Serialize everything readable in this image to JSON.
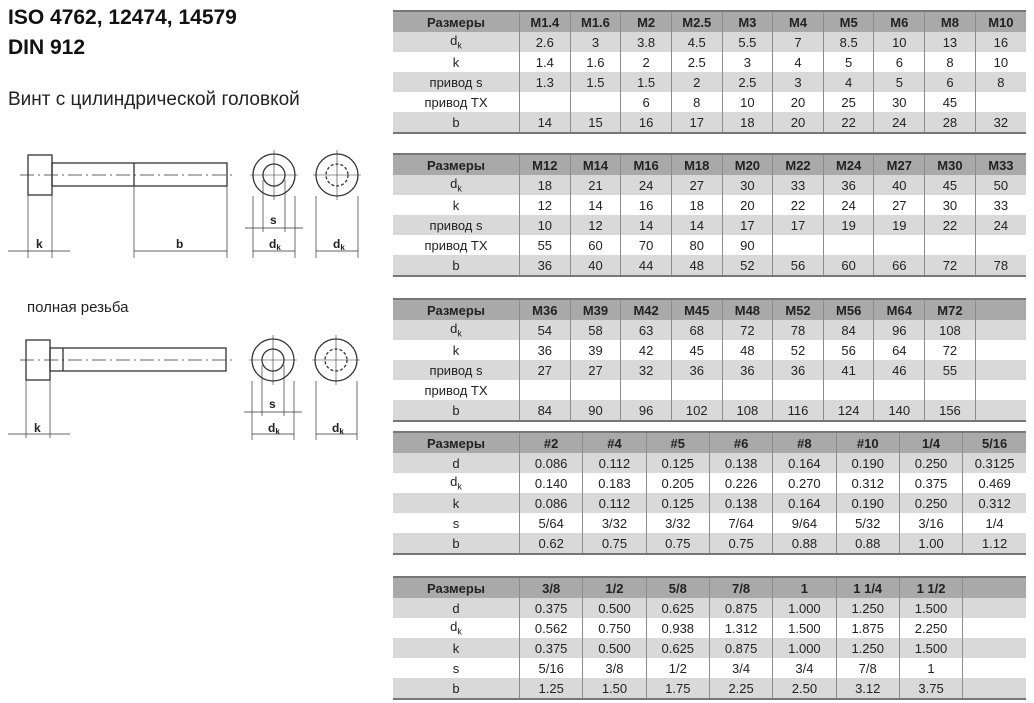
{
  "header": {
    "title_line1": "ISO 4762, 12474, 14579",
    "title_line2": "DIN 912",
    "subtitle": "Винт с цилиндрической головкой"
  },
  "note": "полная резьба",
  "diagram_labels": {
    "k": "k",
    "b": "b",
    "s": "s",
    "dk_main": "d",
    "dk_sub": "k"
  },
  "colors": {
    "header_bg": "#a9a9a9",
    "alt_row_bg": "#d9d9d9"
  },
  "tables": [
    {
      "header": [
        "Размеры",
        "M1.4",
        "M1.6",
        "M2",
        "M2.5",
        "M3",
        "M4",
        "M5",
        "M6",
        "M8",
        "M10"
      ],
      "rows": [
        {
          "label": "d",
          "sub": "k",
          "cells": [
            "2.6",
            "3",
            "3.8",
            "4.5",
            "5.5",
            "7",
            "8.5",
            "10",
            "13",
            "16"
          ]
        },
        {
          "label": "k",
          "cells": [
            "1.4",
            "1.6",
            "2",
            "2.5",
            "3",
            "4",
            "5",
            "6",
            "8",
            "10"
          ]
        },
        {
          "label": "привод s",
          "cells": [
            "1.3",
            "1.5",
            "1.5",
            "2",
            "2.5",
            "3",
            "4",
            "5",
            "6",
            "8"
          ]
        },
        {
          "label": "привод TX",
          "cells": [
            "",
            "",
            "6",
            "8",
            "10",
            "20",
            "25",
            "30",
            "45",
            ""
          ]
        },
        {
          "label": "b",
          "cells": [
            "14",
            "15",
            "16",
            "17",
            "18",
            "20",
            "22",
            "24",
            "28",
            "32"
          ]
        }
      ]
    },
    {
      "header": [
        "Размеры",
        "M12",
        "M14",
        "M16",
        "M18",
        "M20",
        "M22",
        "M24",
        "M27",
        "M30",
        "M33"
      ],
      "rows": [
        {
          "label": "d",
          "sub": "k",
          "cells": [
            "18",
            "21",
            "24",
            "27",
            "30",
            "33",
            "36",
            "40",
            "45",
            "50"
          ]
        },
        {
          "label": "k",
          "cells": [
            "12",
            "14",
            "16",
            "18",
            "20",
            "22",
            "24",
            "27",
            "30",
            "33"
          ]
        },
        {
          "label": "привод s",
          "cells": [
            "10",
            "12",
            "14",
            "14",
            "17",
            "17",
            "19",
            "19",
            "22",
            "24"
          ]
        },
        {
          "label": "привод TX",
          "cells": [
            "55",
            "60",
            "70",
            "80",
            "90",
            "",
            "",
            "",
            "",
            ""
          ]
        },
        {
          "label": "b",
          "cells": [
            "36",
            "40",
            "44",
            "48",
            "52",
            "56",
            "60",
            "66",
            "72",
            "78"
          ]
        }
      ]
    },
    {
      "header": [
        "Размеры",
        "M36",
        "M39",
        "M42",
        "M45",
        "M48",
        "M52",
        "M56",
        "M64",
        "M72",
        ""
      ],
      "rows": [
        {
          "label": "d",
          "sub": "k",
          "cells": [
            "54",
            "58",
            "63",
            "68",
            "72",
            "78",
            "84",
            "96",
            "108",
            ""
          ]
        },
        {
          "label": "k",
          "cells": [
            "36",
            "39",
            "42",
            "45",
            "48",
            "52",
            "56",
            "64",
            "72",
            ""
          ]
        },
        {
          "label": "привод s",
          "cells": [
            "27",
            "27",
            "32",
            "36",
            "36",
            "36",
            "41",
            "46",
            "55",
            ""
          ]
        },
        {
          "label": "привод TX",
          "cells": [
            "",
            "",
            "",
            "",
            "",
            "",
            "",
            "",
            "",
            ""
          ]
        },
        {
          "label": "b",
          "cells": [
            "84",
            "90",
            "96",
            "102",
            "108",
            "116",
            "124",
            "140",
            "156",
            ""
          ]
        }
      ]
    },
    {
      "header": [
        "Размеры",
        "#2",
        "#4",
        "#5",
        "#6",
        "#8",
        "#10",
        "1/4",
        "5/16"
      ],
      "rows": [
        {
          "label": "d",
          "cells": [
            "0.086",
            "0.112",
            "0.125",
            "0.138",
            "0.164",
            "0.190",
            "0.250",
            "0.3125"
          ]
        },
        {
          "label": "d",
          "sub": "k",
          "cells": [
            "0.140",
            "0.183",
            "0.205",
            "0.226",
            "0.270",
            "0.312",
            "0.375",
            "0.469"
          ]
        },
        {
          "label": "k",
          "cells": [
            "0.086",
            "0.112",
            "0.125",
            "0.138",
            "0.164",
            "0.190",
            "0.250",
            "0.312"
          ]
        },
        {
          "label": "s",
          "cells": [
            "5/64",
            "3/32",
            "3/32",
            "7/64",
            "9/64",
            "5/32",
            "3/16",
            "1/4"
          ]
        },
        {
          "label": "b",
          "cells": [
            "0.62",
            "0.75",
            "0.75",
            "0.75",
            "0.88",
            "0.88",
            "1.00",
            "1.12"
          ]
        }
      ]
    },
    {
      "header": [
        "Размеры",
        "3/8",
        "1/2",
        "5/8",
        "7/8",
        "1",
        "1 1/4",
        "1 1/2",
        ""
      ],
      "rows": [
        {
          "label": "d",
          "cells": [
            "0.375",
            "0.500",
            "0.625",
            "0.875",
            "1.000",
            "1.250",
            "1.500",
            ""
          ]
        },
        {
          "label": "d",
          "sub": "k",
          "cells": [
            "0.562",
            "0.750",
            "0.938",
            "1.312",
            "1.500",
            "1.875",
            "2.250",
            ""
          ]
        },
        {
          "label": "k",
          "cells": [
            "0.375",
            "0.500",
            "0.625",
            "0.875",
            "1.000",
            "1.250",
            "1.500",
            ""
          ]
        },
        {
          "label": "s",
          "cells": [
            "5/16",
            "3/8",
            "1/2",
            "3/4",
            "3/4",
            "7/8",
            "1",
            ""
          ]
        },
        {
          "label": "b",
          "cells": [
            "1.25",
            "1.50",
            "1.75",
            "2.25",
            "2.50",
            "3.12",
            "3.75",
            ""
          ]
        }
      ]
    }
  ]
}
